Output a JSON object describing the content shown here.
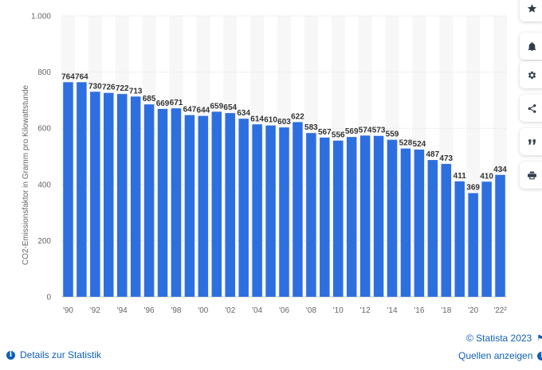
{
  "chart_data": {
    "type": "bar",
    "title": "",
    "ylabel": "CO2-Emissionsfaktor in Gramm pro Kilowattstunde",
    "xlabel": "",
    "ylim": [
      0,
      1000
    ],
    "yticks": [
      0,
      200,
      400,
      600,
      800,
      1000
    ],
    "ytick_labels": [
      "0",
      "200",
      "400",
      "600",
      "800",
      "1.000"
    ],
    "categories": [
      "1990",
      "1991",
      "1992",
      "1993",
      "1994",
      "1995",
      "1996",
      "1997",
      "1998",
      "1999",
      "2000",
      "2001",
      "2002",
      "2003",
      "2004",
      "2005",
      "2006",
      "2007",
      "2008",
      "2009",
      "2010",
      "2011",
      "2012",
      "2013",
      "2014",
      "2015",
      "2016",
      "2017",
      "2018",
      "2019",
      "2020",
      "2021",
      "2022"
    ],
    "xtick_labels": [
      "'90",
      "",
      "'92",
      "",
      "'94",
      "",
      "'96",
      "",
      "'98",
      "",
      "'00",
      "",
      "'02",
      "",
      "'04",
      "",
      "'06",
      "",
      "'08",
      "",
      "'10",
      "",
      "'12",
      "",
      "'14",
      "",
      "'16",
      "",
      "'18",
      "",
      "'20",
      "",
      "'22²"
    ],
    "values": [
      764,
      764,
      730,
      726,
      722,
      713,
      685,
      669,
      671,
      647,
      644,
      659,
      654,
      634,
      614,
      610,
      603,
      622,
      583,
      567,
      556,
      569,
      574,
      573,
      559,
      528,
      524,
      487,
      473,
      411,
      369,
      410,
      434
    ],
    "bar_color": "#2e6fe0",
    "grid": true
  },
  "footer": {
    "credit": "© Statista 2023",
    "details_label": "Details zur Statistik",
    "sources_label": "Quellen anzeigen"
  },
  "sidebar": {
    "icons": [
      "star-icon",
      "bell-icon",
      "gear-icon",
      "share-icon",
      "quote-icon",
      "print-icon"
    ]
  }
}
